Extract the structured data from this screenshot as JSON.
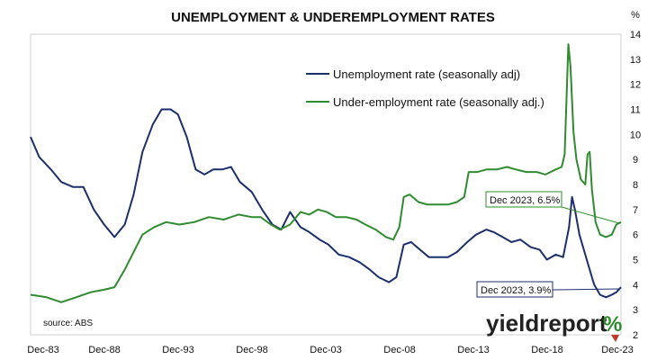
{
  "chart_data": {
    "type": "line",
    "title": "UNEMPLOYMENT & UNDEREMPLOYMENT RATES",
    "ylabel": "%",
    "ylim": [
      2,
      14
    ],
    "y_ticks": [
      2,
      3,
      4,
      5,
      6,
      7,
      8,
      9,
      10,
      11,
      12,
      13,
      14
    ],
    "x_range": [
      1983.92,
      2023.92
    ],
    "x_ticks": [
      {
        "x": 1983.92,
        "label": "Dec-83"
      },
      {
        "x": 1988.92,
        "label": "Dec-88"
      },
      {
        "x": 1993.92,
        "label": "Dec-93"
      },
      {
        "x": 1998.92,
        "label": "Dec-98"
      },
      {
        "x": 2003.92,
        "label": "Dec-03"
      },
      {
        "x": 2008.92,
        "label": "Dec-08"
      },
      {
        "x": 2013.92,
        "label": "Dec-13"
      },
      {
        "x": 2018.92,
        "label": "Dec-18"
      },
      {
        "x": 2023.92,
        "label": "Dec-23"
      }
    ],
    "legend_position": "top-center",
    "grid": false,
    "series": [
      {
        "name": "Unemployment rate (seasonally adj)",
        "color": "#1b2f6b",
        "points": [
          [
            1983.92,
            9.9
          ],
          [
            1984.5,
            9.1
          ],
          [
            1985.3,
            8.6
          ],
          [
            1986.0,
            8.1
          ],
          [
            1986.8,
            7.9
          ],
          [
            1987.5,
            7.9
          ],
          [
            1988.2,
            7.0
          ],
          [
            1988.9,
            6.4
          ],
          [
            1989.6,
            5.9
          ],
          [
            1990.3,
            6.4
          ],
          [
            1990.9,
            7.6
          ],
          [
            1991.5,
            9.3
          ],
          [
            1992.2,
            10.4
          ],
          [
            1992.8,
            11.0
          ],
          [
            1993.4,
            11.0
          ],
          [
            1993.9,
            10.8
          ],
          [
            1994.5,
            9.9
          ],
          [
            1995.1,
            8.6
          ],
          [
            1995.7,
            8.4
          ],
          [
            1996.3,
            8.6
          ],
          [
            1996.9,
            8.6
          ],
          [
            1997.5,
            8.7
          ],
          [
            1998.1,
            8.1
          ],
          [
            1998.9,
            7.7
          ],
          [
            1999.6,
            7.0
          ],
          [
            2000.3,
            6.4
          ],
          [
            2000.9,
            6.2
          ],
          [
            2001.5,
            6.9
          ],
          [
            2002.2,
            6.3
          ],
          [
            2002.8,
            6.1
          ],
          [
            2003.5,
            5.8
          ],
          [
            2004.1,
            5.6
          ],
          [
            2004.8,
            5.2
          ],
          [
            2005.5,
            5.1
          ],
          [
            2006.2,
            4.9
          ],
          [
            2006.9,
            4.6
          ],
          [
            2007.5,
            4.3
          ],
          [
            2008.2,
            4.1
          ],
          [
            2008.7,
            4.3
          ],
          [
            2009.2,
            5.6
          ],
          [
            2009.7,
            5.7
          ],
          [
            2010.3,
            5.4
          ],
          [
            2010.9,
            5.1
          ],
          [
            2011.5,
            5.1
          ],
          [
            2012.2,
            5.1
          ],
          [
            2012.8,
            5.3
          ],
          [
            2013.5,
            5.7
          ],
          [
            2014.1,
            6.0
          ],
          [
            2014.8,
            6.2
          ],
          [
            2015.3,
            6.1
          ],
          [
            2015.9,
            5.9
          ],
          [
            2016.5,
            5.7
          ],
          [
            2017.1,
            5.8
          ],
          [
            2017.8,
            5.5
          ],
          [
            2018.4,
            5.4
          ],
          [
            2018.9,
            5.0
          ],
          [
            2019.5,
            5.2
          ],
          [
            2020.0,
            5.1
          ],
          [
            2020.4,
            6.3
          ],
          [
            2020.6,
            7.5
          ],
          [
            2020.8,
            7.0
          ],
          [
            2021.1,
            6.0
          ],
          [
            2021.5,
            5.2
          ],
          [
            2021.8,
            4.6
          ],
          [
            2022.1,
            4.0
          ],
          [
            2022.5,
            3.6
          ],
          [
            2022.9,
            3.5
          ],
          [
            2023.3,
            3.6
          ],
          [
            2023.6,
            3.7
          ],
          [
            2023.92,
            3.9
          ]
        ]
      },
      {
        "name": "Under-employment rate (seasonally adj.)",
        "color": "#2e8b2e",
        "points": [
          [
            1983.92,
            3.6
          ],
          [
            1985.0,
            3.5
          ],
          [
            1986.0,
            3.3
          ],
          [
            1987.0,
            3.5
          ],
          [
            1988.0,
            3.7
          ],
          [
            1988.9,
            3.8
          ],
          [
            1989.6,
            3.9
          ],
          [
            1990.3,
            4.6
          ],
          [
            1990.9,
            5.3
          ],
          [
            1991.5,
            6.0
          ],
          [
            1992.3,
            6.3
          ],
          [
            1993.1,
            6.5
          ],
          [
            1994.0,
            6.4
          ],
          [
            1995.0,
            6.5
          ],
          [
            1996.0,
            6.7
          ],
          [
            1997.0,
            6.6
          ],
          [
            1998.0,
            6.8
          ],
          [
            1998.9,
            6.7
          ],
          [
            1999.5,
            6.7
          ],
          [
            2000.2,
            6.4
          ],
          [
            2000.8,
            6.2
          ],
          [
            2001.5,
            6.4
          ],
          [
            2002.2,
            6.9
          ],
          [
            2002.8,
            6.8
          ],
          [
            2003.4,
            7.0
          ],
          [
            2004.0,
            6.9
          ],
          [
            2004.6,
            6.7
          ],
          [
            2005.3,
            6.7
          ],
          [
            2006.0,
            6.6
          ],
          [
            2006.6,
            6.4
          ],
          [
            2007.3,
            6.2
          ],
          [
            2008.0,
            5.9
          ],
          [
            2008.5,
            5.8
          ],
          [
            2008.9,
            6.3
          ],
          [
            2009.2,
            7.5
          ],
          [
            2009.6,
            7.6
          ],
          [
            2010.2,
            7.3
          ],
          [
            2010.8,
            7.2
          ],
          [
            2011.5,
            7.2
          ],
          [
            2012.2,
            7.2
          ],
          [
            2012.8,
            7.3
          ],
          [
            2013.3,
            7.5
          ],
          [
            2013.6,
            8.5
          ],
          [
            2014.2,
            8.5
          ],
          [
            2014.8,
            8.6
          ],
          [
            2015.5,
            8.6
          ],
          [
            2016.2,
            8.7
          ],
          [
            2016.8,
            8.6
          ],
          [
            2017.5,
            8.5
          ],
          [
            2018.2,
            8.5
          ],
          [
            2018.8,
            8.4
          ],
          [
            2019.5,
            8.6
          ],
          [
            2019.9,
            8.7
          ],
          [
            2020.1,
            9.2
          ],
          [
            2020.35,
            13.6
          ],
          [
            2020.5,
            12.7
          ],
          [
            2020.7,
            10.1
          ],
          [
            2020.9,
            9.0
          ],
          [
            2021.2,
            8.2
          ],
          [
            2021.5,
            8.0
          ],
          [
            2021.65,
            9.2
          ],
          [
            2021.8,
            9.3
          ],
          [
            2021.95,
            7.8
          ],
          [
            2022.2,
            6.5
          ],
          [
            2022.5,
            6.0
          ],
          [
            2022.9,
            5.9
          ],
          [
            2023.3,
            6.0
          ],
          [
            2023.6,
            6.4
          ],
          [
            2023.92,
            6.5
          ]
        ]
      }
    ],
    "annotations": [
      {
        "label": "Dec 2023, 6.5%",
        "series": 1,
        "x": 2023.92,
        "y": 6.5
      },
      {
        "label": "Dec 2023, 3.9%",
        "series": 0,
        "x": 2023.92,
        "y": 3.9
      }
    ],
    "source": "source: ABS"
  },
  "branding": {
    "logo_text": "yieldreport",
    "logo_symbol": "%",
    "logo_symbol_color": "#2e8b2e",
    "logo_accent_color": "#c0392b"
  }
}
